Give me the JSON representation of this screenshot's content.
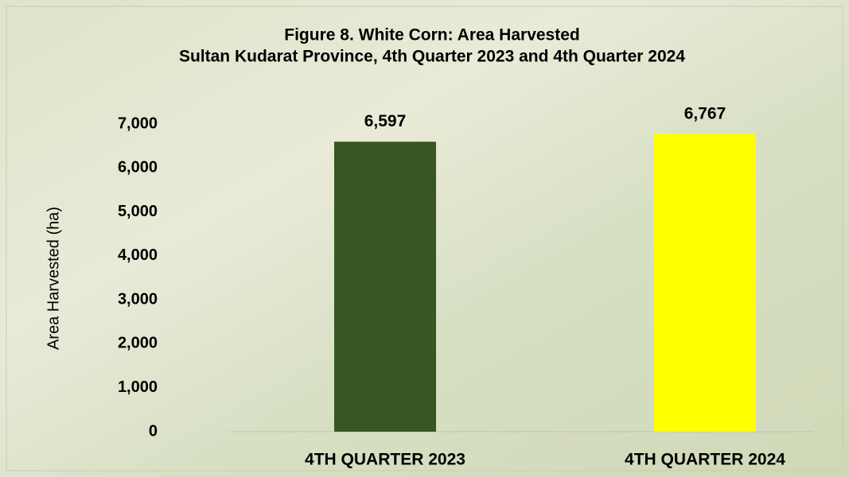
{
  "chart_data": {
    "type": "bar",
    "title": "Figure 8. White Corn: Area Harvested",
    "subtitle": "Sultan Kudarat Province, 4th Quarter 2023 and 4th Quarter 2024",
    "y_label": "Area Harvested (ha)",
    "categories": [
      "4TH QUARTER 2023",
      "4TH QUARTER 2024"
    ],
    "values": [
      6597,
      6767
    ],
    "value_labels": [
      "6,597",
      "6,767"
    ],
    "colors": [
      "#375623",
      "#ffff00"
    ],
    "ylim": [
      0,
      7000
    ],
    "yticks": [
      0,
      {
        "value": 1000,
        "label": "1,000"
      },
      {
        "value": 2000,
        "label": "2,000"
      },
      {
        "value": 3000,
        "label": "3,000"
      },
      {
        "value": 4000,
        "label": "4,000"
      },
      {
        "value": 5000,
        "label": "5,000"
      },
      {
        "value": 6000,
        "label": "6,000"
      },
      {
        "value": 7000,
        "label": "7,000"
      }
    ],
    "grid": false
  }
}
